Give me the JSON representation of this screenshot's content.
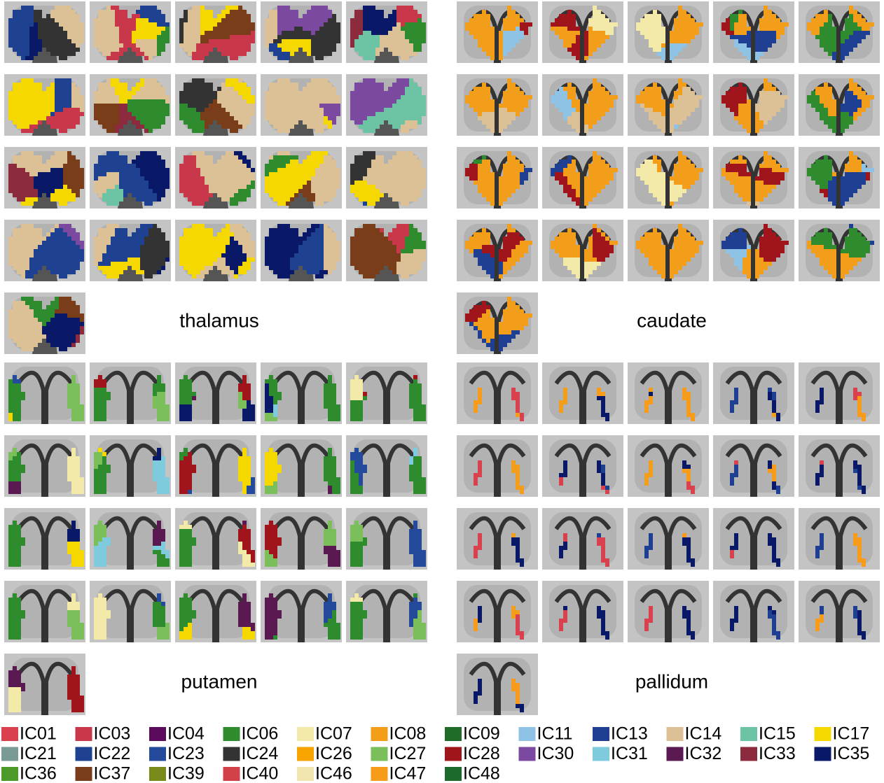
{
  "panels": [
    {
      "label": "thalamus"
    },
    {
      "label": "caudate"
    },
    {
      "label": "putamen"
    },
    {
      "label": "pallidum"
    }
  ],
  "legend": [
    {
      "name": "IC01",
      "color": "#d9414e"
    },
    {
      "name": "IC03",
      "color": "#c8384a"
    },
    {
      "name": "IC04",
      "color": "#5c0a5c"
    },
    {
      "name": "IC06",
      "color": "#2e8b2e"
    },
    {
      "name": "IC07",
      "color": "#f3e9a8"
    },
    {
      "name": "IC08",
      "color": "#f29e1a"
    },
    {
      "name": "IC09",
      "color": "#1e6b2a"
    },
    {
      "name": "IC11",
      "color": "#8fc3e6"
    },
    {
      "name": "IC13",
      "color": "#1f3f93"
    },
    {
      "name": "IC14",
      "color": "#dcc096"
    },
    {
      "name": "IC15",
      "color": "#6cc4a4"
    },
    {
      "name": "IC17",
      "color": "#f5d800"
    },
    {
      "name": "IC21",
      "color": "#7a9a96"
    },
    {
      "name": "IC22",
      "color": "#1e4291"
    },
    {
      "name": "IC23",
      "color": "#244b9b"
    },
    {
      "name": "IC24",
      "color": "#333333"
    },
    {
      "name": "IC26",
      "color": "#f7a300"
    },
    {
      "name": "IC27",
      "color": "#7bbf5b"
    },
    {
      "name": "IC28",
      "color": "#a0151b"
    },
    {
      "name": "IC30",
      "color": "#7b4aa0"
    },
    {
      "name": "IC31",
      "color": "#7dcbdc"
    },
    {
      "name": "IC32",
      "color": "#5a1950"
    },
    {
      "name": "IC33",
      "color": "#8c2a3e"
    },
    {
      "name": "IC35",
      "color": "#0a1868"
    },
    {
      "name": "IC36",
      "color": "#4c9a2a"
    },
    {
      "name": "IC37",
      "color": "#7a3d1a"
    },
    {
      "name": "IC39",
      "color": "#7a8a1a"
    },
    {
      "name": "IC40",
      "color": "#d2404a"
    },
    {
      "name": "IC46",
      "color": "#f2e6b0"
    },
    {
      "name": "IC47",
      "color": "#f79b1a"
    },
    {
      "name": "IC48",
      "color": "#1c6a2c"
    }
  ]
}
